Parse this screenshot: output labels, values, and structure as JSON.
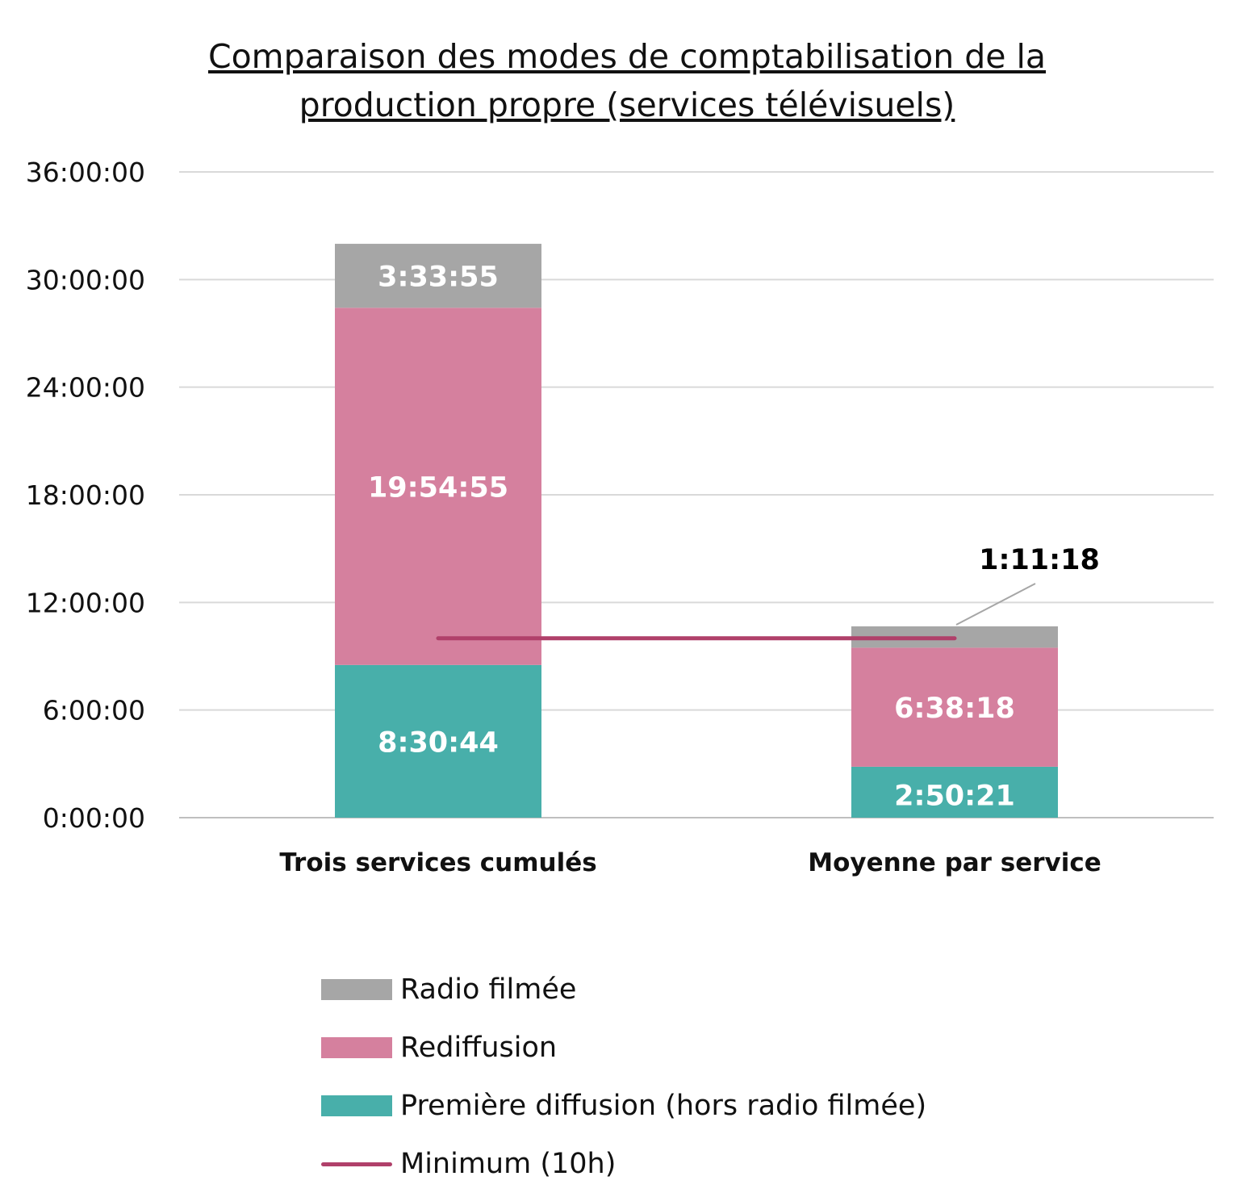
{
  "chart_data": {
    "type": "bar",
    "stacked": true,
    "title": "Comparaison des modes de comptabilisation de la production propre (services télévisuels)",
    "title_lines": [
      "Comparaison des modes de comptabilisation de la",
      "production propre (services télévisuels)"
    ],
    "categories": [
      "Trois services cumulés",
      "Moyenne par service"
    ],
    "y_unit": "hours",
    "ylim": [
      0,
      36
    ],
    "yticks": [
      0,
      6,
      12,
      18,
      24,
      30,
      36
    ],
    "ytick_labels": [
      "0:00:00",
      "6:00:00",
      "12:00:00",
      "18:00:00",
      "24:00:00",
      "30:00:00",
      "36:00:00"
    ],
    "grid": true,
    "legend_position": "bottom",
    "series": [
      {
        "name": "Première diffusion (hors radio filmée)",
        "color": "#48AFAA",
        "values": [
          8.5122,
          2.8392
        ],
        "labels": [
          "8:30:44",
          "2:50:21"
        ]
      },
      {
        "name": "Rediffusion",
        "color": "#D5809E",
        "values": [
          19.9153,
          6.6383
        ],
        "labels": [
          "19:54:55",
          "6:38:18"
        ]
      },
      {
        "name": "Radio filmée",
        "color": "#A6A6A6",
        "values": [
          3.5653,
          1.1883
        ],
        "labels": [
          "3:33:55",
          "1:11:18"
        ]
      }
    ],
    "reference_line": {
      "name": "Minimum (10h)",
      "value": 10,
      "color": "#B0406A"
    }
  }
}
